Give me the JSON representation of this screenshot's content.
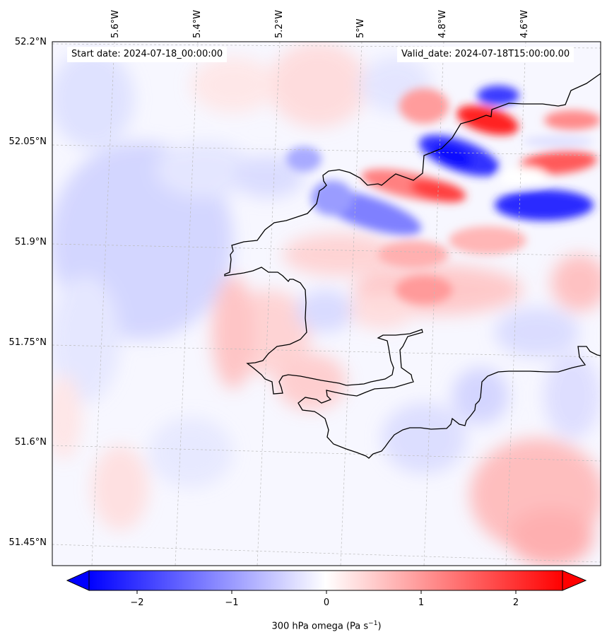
{
  "map": {
    "start_label": "Start date: 2024-07-18_00:00:00",
    "valid_label": "Valid_date: 2024-07-18T15:00:00.00",
    "lat_labels": [
      "52.2°N",
      "52.05°N",
      "51.9°N",
      "51.75°N",
      "51.6°N",
      "51.45°N"
    ],
    "lon_labels": [
      "5.6°W",
      "5.4°W",
      "5.2°W",
      "5°W",
      "4.8°W",
      "4.6°W"
    ],
    "fill_colors": {
      "negative": "#0000ff",
      "positive": "#ff0000",
      "neutral": "#ffffff"
    },
    "coastline_color": "#000000"
  },
  "colorbar": {
    "variable": "300 hPa omega (Pa s",
    "unit_exponent": "−1",
    "close": ")",
    "ticks": [
      "−2",
      "−1",
      "0",
      "1",
      "2"
    ],
    "range": [
      -2.5,
      2.5
    ],
    "extend": "both"
  }
}
